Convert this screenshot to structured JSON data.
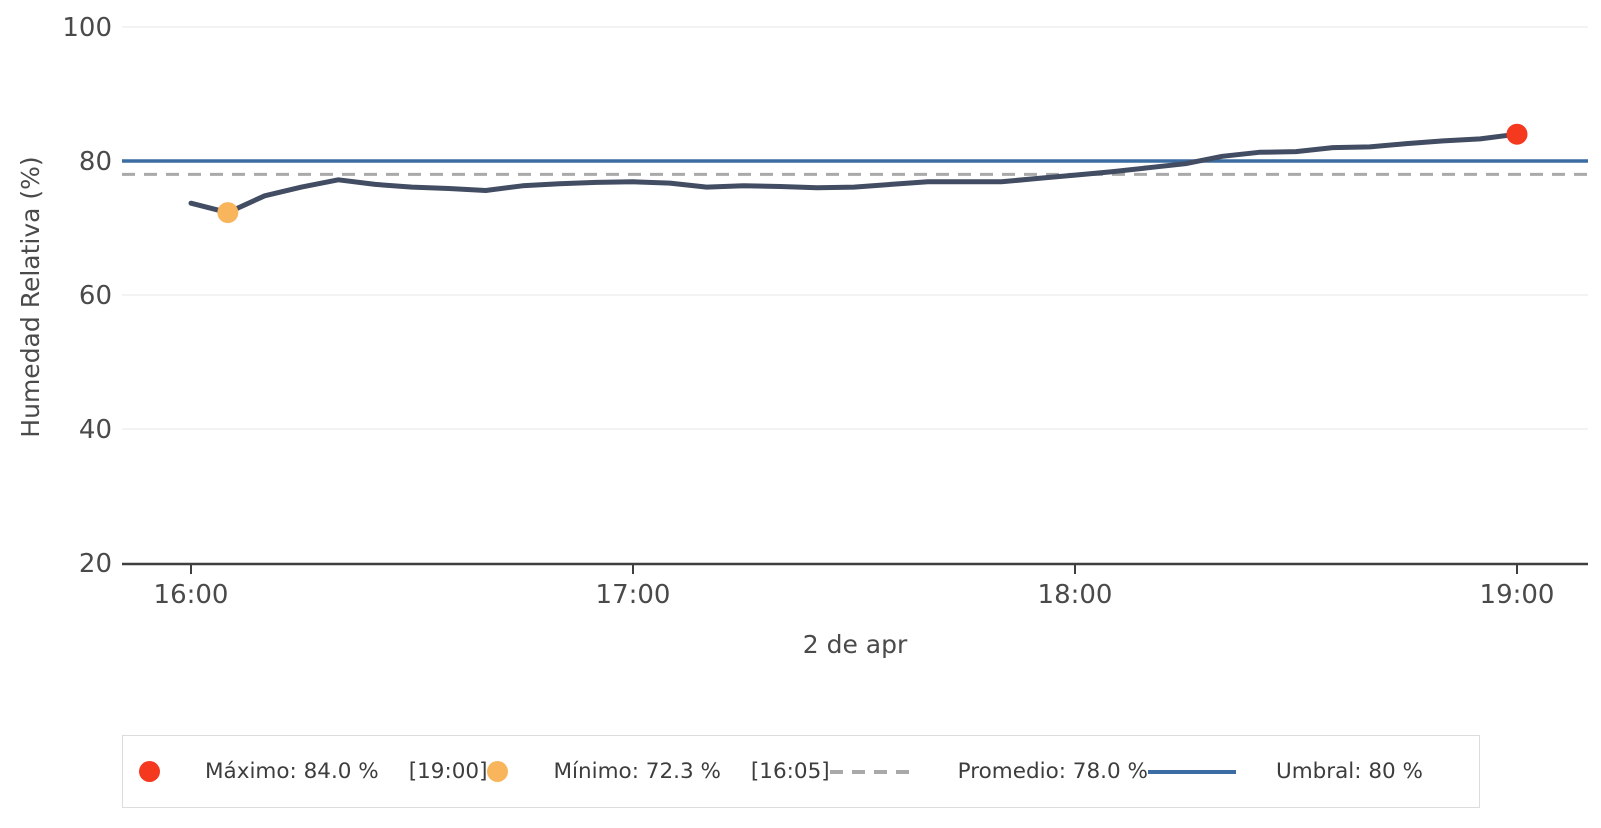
{
  "legend": {
    "maximo": {
      "label": "Máximo: 84.0 %",
      "time": "[19:00]",
      "color": "#f5391f"
    },
    "minimo": {
      "label": "Mínimo: 72.3 %",
      "time": "[16:05]",
      "color": "#f9b55c"
    },
    "promedio": {
      "label": "Promedio: 78.0 %",
      "color": "#a9a9a9"
    },
    "umbral": {
      "label": "Umbral: 80 %",
      "color": "#3b6da2"
    }
  },
  "chart_data": {
    "type": "line",
    "title": "",
    "xlabel": "2 de apr",
    "ylabel": "Humedad Relativa (%)",
    "ylim": [
      20,
      100
    ],
    "y_ticks": [
      100,
      80,
      60,
      40,
      20
    ],
    "x_ticks": [
      "16:00",
      "17:00",
      "18:00",
      "19:00"
    ],
    "grid": "horizontal-faint",
    "legend_position": "bottom",
    "series_name": "Humedad Relativa",
    "series_color": "#424c62",
    "times": [
      "16:00",
      "16:05",
      "16:10",
      "16:15",
      "16:20",
      "16:25",
      "16:30",
      "16:35",
      "16:40",
      "16:45",
      "16:50",
      "16:55",
      "17:00",
      "17:05",
      "17:10",
      "17:15",
      "17:20",
      "17:25",
      "17:30",
      "17:35",
      "17:40",
      "17:45",
      "17:50",
      "17:55",
      "18:00",
      "18:05",
      "18:10",
      "18:15",
      "18:20",
      "18:25",
      "18:30",
      "18:35",
      "18:40",
      "18:45",
      "18:50",
      "18:55",
      "19:00"
    ],
    "values": [
      73.7,
      72.3,
      74.8,
      76.1,
      77.2,
      76.5,
      76.1,
      75.9,
      75.6,
      76.3,
      76.6,
      76.8,
      76.9,
      76.7,
      76.1,
      76.3,
      76.2,
      76.0,
      76.1,
      76.5,
      76.9,
      76.9,
      76.9,
      77.4,
      77.9,
      78.4,
      79.0,
      79.6,
      80.7,
      81.3,
      81.4,
      82.0,
      82.1,
      82.6,
      83.0,
      83.3,
      84.0
    ],
    "max_point": {
      "value": 84.0,
      "time": "19:00",
      "color": "#f5391f"
    },
    "min_point": {
      "value": 72.3,
      "time": "16:05",
      "color": "#f9b55c"
    },
    "average_line": {
      "value": 78.0,
      "style": "dashed",
      "color": "#a9a9a9"
    },
    "threshold_line": {
      "value": 80,
      "style": "solid",
      "color": "#3b6da2"
    }
  }
}
